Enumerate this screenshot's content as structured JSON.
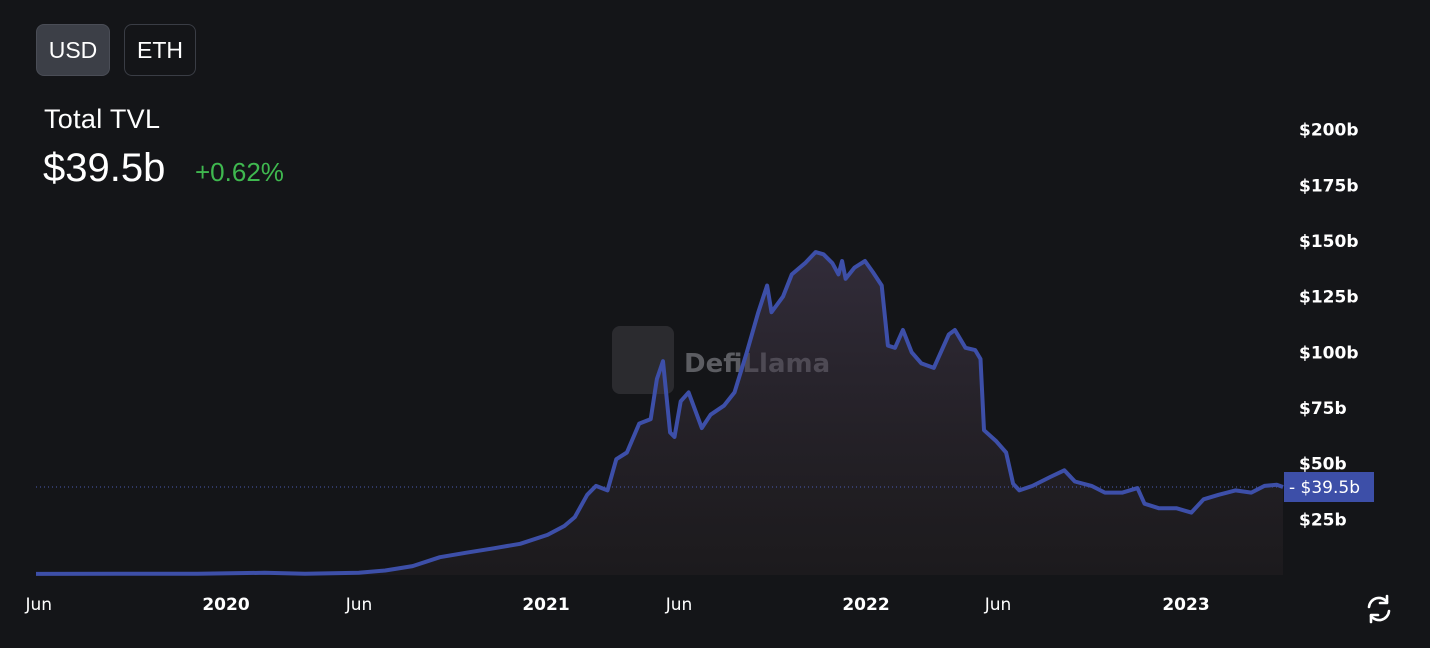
{
  "toggles": {
    "usd": "USD",
    "eth": "ETH",
    "active": "USD"
  },
  "header": {
    "label": "Total TVL",
    "value": "$39.5b",
    "change": "+0.62%"
  },
  "colors": {
    "line": "#3d4fa8",
    "change_positive": "#3fb84f",
    "last_label_bg": "#3d4fa8",
    "background": "#141518"
  },
  "watermark": {
    "text": "DefiLlama"
  },
  "icons": {
    "refresh": "refresh-icon",
    "watermark": "llama-logo-icon"
  },
  "chart_data": {
    "type": "area",
    "title": "Total TVL",
    "ylabel": "",
    "xlabel": "",
    "ylim": [
      0,
      200
    ],
    "yunit": "billion USD",
    "yticks": [
      "$25b",
      "$50b",
      "$75b",
      "$100b",
      "$125b",
      "$150b",
      "$175b",
      "$200b"
    ],
    "xticks": [
      "Jun",
      "2020",
      "Jun",
      "2021",
      "Jun",
      "2022",
      "Jun",
      "2023"
    ],
    "last_value_label": "$39.5b",
    "last_value": 39.5,
    "grid": false,
    "series": [
      {
        "points": [
          [
            "2019-06-01",
            0.5
          ],
          [
            "2019-09-01",
            0.6
          ],
          [
            "2019-12-01",
            0.6
          ],
          [
            "2020-02-15",
            1.0
          ],
          [
            "2020-04-01",
            0.6
          ],
          [
            "2020-06-01",
            1.0
          ],
          [
            "2020-07-01",
            2.0
          ],
          [
            "2020-08-01",
            4.0
          ],
          [
            "2020-09-01",
            8.0
          ],
          [
            "2020-10-01",
            10.0
          ],
          [
            "2020-11-01",
            12.0
          ],
          [
            "2020-12-01",
            14.0
          ],
          [
            "2021-01-01",
            18.0
          ],
          [
            "2021-01-20",
            22.0
          ],
          [
            "2021-02-01",
            26.0
          ],
          [
            "2021-02-15",
            36.0
          ],
          [
            "2021-02-25",
            40.0
          ],
          [
            "2021-03-10",
            38.0
          ],
          [
            "2021-03-20",
            52.0
          ],
          [
            "2021-04-01",
            55.0
          ],
          [
            "2021-04-15",
            68.0
          ],
          [
            "2021-04-28",
            70.0
          ],
          [
            "2021-05-05",
            88.0
          ],
          [
            "2021-05-12",
            96.0
          ],
          [
            "2021-05-20",
            64.0
          ],
          [
            "2021-05-25",
            62.0
          ],
          [
            "2021-06-01",
            78.0
          ],
          [
            "2021-06-10",
            82.0
          ],
          [
            "2021-06-25",
            66.0
          ],
          [
            "2021-07-05",
            72.0
          ],
          [
            "2021-07-20",
            76.0
          ],
          [
            "2021-08-01",
            82.0
          ],
          [
            "2021-08-15",
            100.0
          ],
          [
            "2021-08-28",
            118.0
          ],
          [
            "2021-09-07",
            130.0
          ],
          [
            "2021-09-12",
            118.0
          ],
          [
            "2021-09-25",
            125.0
          ],
          [
            "2021-10-05",
            135.0
          ],
          [
            "2021-10-20",
            140.0
          ],
          [
            "2021-11-01",
            145.0
          ],
          [
            "2021-11-10",
            144.0
          ],
          [
            "2021-11-20",
            140.0
          ],
          [
            "2021-11-27",
            135.0
          ],
          [
            "2021-12-01",
            141.0
          ],
          [
            "2021-12-05",
            133.0
          ],
          [
            "2021-12-15",
            138.0
          ],
          [
            "2021-12-27",
            141.0
          ],
          [
            "2022-01-05",
            136.0
          ],
          [
            "2022-01-15",
            130.0
          ],
          [
            "2022-01-22",
            103.0
          ],
          [
            "2022-01-30",
            102.0
          ],
          [
            "2022-02-08",
            110.0
          ],
          [
            "2022-02-18",
            100.0
          ],
          [
            "2022-03-01",
            95.0
          ],
          [
            "2022-03-15",
            93.0
          ],
          [
            "2022-04-01",
            108.0
          ],
          [
            "2022-04-08",
            110.0
          ],
          [
            "2022-04-20",
            102.0
          ],
          [
            "2022-05-01",
            101.0
          ],
          [
            "2022-05-07",
            97.0
          ],
          [
            "2022-05-11",
            65.0
          ],
          [
            "2022-05-25",
            60.0
          ],
          [
            "2022-06-05",
            55.0
          ],
          [
            "2022-06-13",
            41.0
          ],
          [
            "2022-06-20",
            38.0
          ],
          [
            "2022-07-05",
            40.0
          ],
          [
            "2022-07-25",
            44.0
          ],
          [
            "2022-08-10",
            47.0
          ],
          [
            "2022-08-22",
            42.0
          ],
          [
            "2022-09-10",
            40.0
          ],
          [
            "2022-09-25",
            37.0
          ],
          [
            "2022-10-15",
            37.0
          ],
          [
            "2022-11-01",
            39.0
          ],
          [
            "2022-11-09",
            32.0
          ],
          [
            "2022-11-25",
            30.0
          ],
          [
            "2022-12-15",
            30.0
          ],
          [
            "2023-01-01",
            28.0
          ],
          [
            "2023-01-15",
            34.0
          ],
          [
            "2023-02-01",
            36.0
          ],
          [
            "2023-02-20",
            38.0
          ],
          [
            "2023-03-10",
            37.0
          ],
          [
            "2023-03-25",
            40.0
          ],
          [
            "2023-04-08",
            40.5
          ],
          [
            "2023-04-15",
            39.5
          ]
        ]
      }
    ]
  }
}
